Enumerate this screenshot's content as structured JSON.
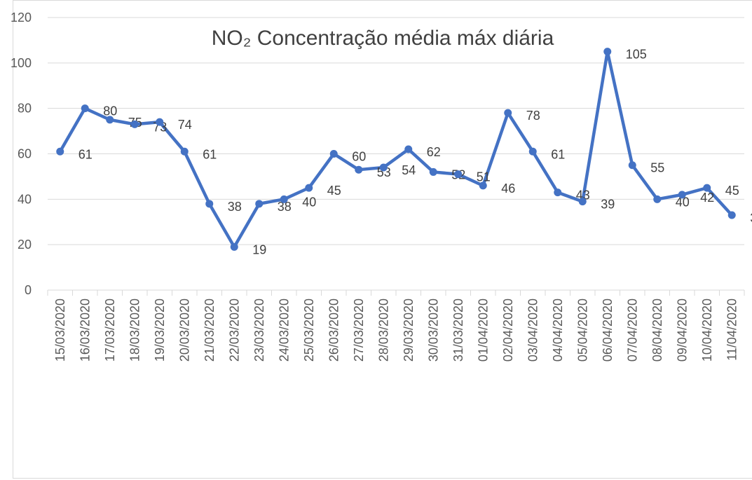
{
  "chart_data": {
    "type": "line",
    "title": "NO₂ Concentração média máx diária",
    "categories": [
      "15/03/2020",
      "16/03/2020",
      "17/03/2020",
      "18/03/2020",
      "19/03/2020",
      "20/03/2020",
      "21/03/2020",
      "22/03/2020",
      "23/03/2020",
      "24/03/2020",
      "25/03/2020",
      "26/03/2020",
      "27/03/2020",
      "28/03/2020",
      "29/03/2020",
      "30/03/2020",
      "31/03/2020",
      "01/04/2020",
      "02/04/2020",
      "03/04/2020",
      "04/04/2020",
      "05/04/2020",
      "06/04/2020",
      "07/04/2020",
      "08/04/2020",
      "09/04/2020",
      "10/04/2020",
      "11/04/2020"
    ],
    "series": [
      {
        "color": "#4472c4",
        "values": [
          61,
          80,
          75,
          73,
          74,
          61,
          38,
          19,
          38,
          40,
          45,
          60,
          53,
          54,
          62,
          52,
          51,
          46,
          78,
          61,
          43,
          39,
          105,
          55,
          40,
          42,
          45,
          33
        ]
      }
    ],
    "ylim": [
      0,
      120
    ],
    "yticks": [
      0,
      20,
      40,
      60,
      80,
      100,
      120
    ],
    "grid": true
  }
}
